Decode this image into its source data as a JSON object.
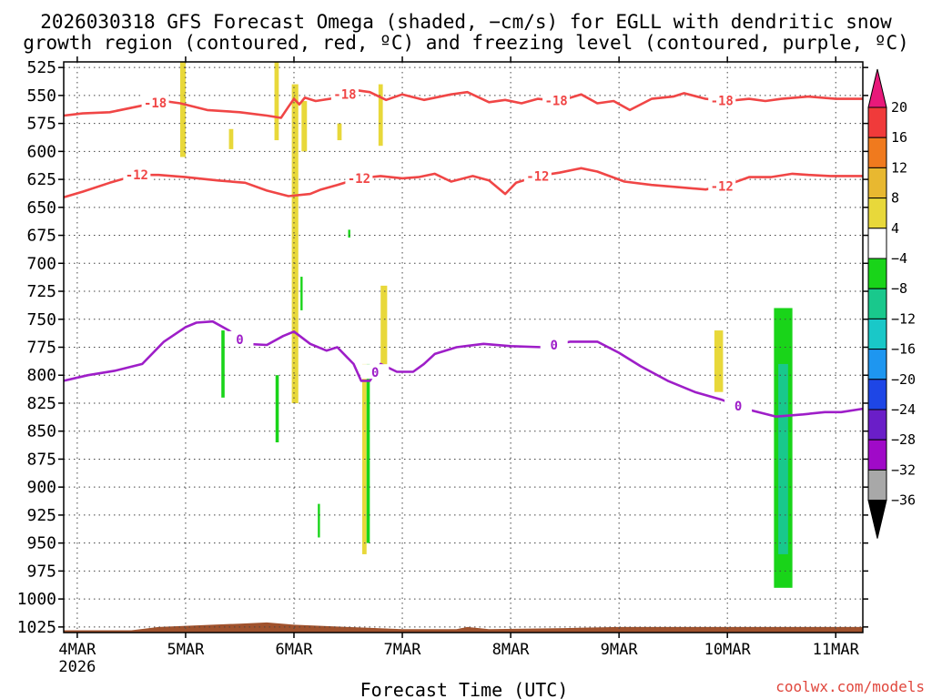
{
  "chart_data": {
    "type": "heatmap",
    "title_lines": [
      "2026030318 GFS Forecast Omega (shaded, −cm/s) for EGLL with dendritic snow",
      "growth region (contoured, red, ºC) and freezing level (contoured, purple, ºC)"
    ],
    "xlabel": "Forecast Time (UTC)",
    "credit": "coolwx.com/models",
    "x_ticks": [
      {
        "day": 4,
        "label": "4MAR",
        "sub": "2026"
      },
      {
        "day": 5,
        "label": "5MAR",
        "sub": ""
      },
      {
        "day": 6,
        "label": "6MAR",
        "sub": ""
      },
      {
        "day": 7,
        "label": "7MAR",
        "sub": ""
      },
      {
        "day": 8,
        "label": "8MAR",
        "sub": ""
      },
      {
        "day": 9,
        "label": "9MAR",
        "sub": ""
      },
      {
        "day": 10,
        "label": "10MAR",
        "sub": ""
      },
      {
        "day": 11,
        "label": "11MAR",
        "sub": ""
      }
    ],
    "xlim_days": [
      3.875,
      11.25
    ],
    "y_ticks": [
      525,
      550,
      575,
      600,
      625,
      650,
      675,
      700,
      725,
      750,
      775,
      800,
      825,
      850,
      875,
      900,
      925,
      950,
      975,
      1000,
      1025
    ],
    "ylim_hpa": [
      520,
      1030
    ],
    "colorbar": {
      "tick_labels": [
        "20",
        "16",
        "12",
        "8",
        "4",
        "−4",
        "−8",
        "−12",
        "−16",
        "−20",
        "−24",
        "−28",
        "−32",
        "−36"
      ],
      "colors": [
        "#e8197a",
        "#f03a3a",
        "#f07a1e",
        "#e8b830",
        "#e8d83a",
        "#ffffff",
        "#19d419",
        "#19c88c",
        "#19c8c8",
        "#1e96f0",
        "#1e46e6",
        "#6a1ec8",
        "#a00ac8",
        "#a8a8a8",
        "#000000"
      ]
    },
    "series": [
      {
        "name": "-18 ºC isotherm",
        "color": "#f04646",
        "contour_labels": [
          {
            "day": 4.72,
            "label": "-18"
          },
          {
            "day": 6.47,
            "label": "-18"
          },
          {
            "day": 8.42,
            "label": "-18"
          },
          {
            "day": 9.95,
            "label": "-18"
          }
        ],
        "points": [
          [
            3.875,
            568
          ],
          [
            4.05,
            566
          ],
          [
            4.3,
            565
          ],
          [
            4.55,
            560
          ],
          [
            4.8,
            555
          ],
          [
            4.95,
            557
          ],
          [
            5.2,
            563
          ],
          [
            5.5,
            565
          ],
          [
            5.75,
            568
          ],
          [
            5.88,
            570
          ],
          [
            5.95,
            560
          ],
          [
            6.0,
            553
          ],
          [
            6.05,
            558
          ],
          [
            6.1,
            552
          ],
          [
            6.2,
            555
          ],
          [
            6.4,
            552
          ],
          [
            6.55,
            545
          ],
          [
            6.7,
            547
          ],
          [
            6.85,
            554
          ],
          [
            7.0,
            549
          ],
          [
            7.2,
            554
          ],
          [
            7.45,
            549
          ],
          [
            7.6,
            547
          ],
          [
            7.8,
            556
          ],
          [
            7.95,
            554
          ],
          [
            8.1,
            557
          ],
          [
            8.25,
            553
          ],
          [
            8.45,
            555
          ],
          [
            8.65,
            549
          ],
          [
            8.8,
            557
          ],
          [
            8.95,
            555
          ],
          [
            9.1,
            563
          ],
          [
            9.3,
            553
          ],
          [
            9.5,
            551
          ],
          [
            9.6,
            548
          ],
          [
            9.8,
            553
          ],
          [
            10.0,
            555
          ],
          [
            10.2,
            553
          ],
          [
            10.35,
            555
          ],
          [
            10.5,
            553
          ],
          [
            10.75,
            551
          ],
          [
            11.0,
            553
          ],
          [
            11.25,
            553
          ]
        ]
      },
      {
        "name": "-12 ºC isotherm",
        "color": "#f04646",
        "contour_labels": [
          {
            "day": 4.55,
            "label": "-12"
          },
          {
            "day": 6.6,
            "label": "-12"
          },
          {
            "day": 8.25,
            "label": "-12"
          },
          {
            "day": 9.95,
            "label": "-12"
          }
        ],
        "points": [
          [
            3.875,
            641
          ],
          [
            4.05,
            636
          ],
          [
            4.3,
            628
          ],
          [
            4.55,
            621
          ],
          [
            4.75,
            621
          ],
          [
            5.0,
            623
          ],
          [
            5.3,
            626
          ],
          [
            5.55,
            628
          ],
          [
            5.75,
            635
          ],
          [
            5.95,
            640
          ],
          [
            6.15,
            638
          ],
          [
            6.25,
            634
          ],
          [
            6.4,
            630
          ],
          [
            6.6,
            624
          ],
          [
            6.8,
            622
          ],
          [
            7.0,
            624
          ],
          [
            7.15,
            623
          ],
          [
            7.3,
            620
          ],
          [
            7.45,
            627
          ],
          [
            7.65,
            622
          ],
          [
            7.8,
            626
          ],
          [
            7.95,
            638
          ],
          [
            8.05,
            628
          ],
          [
            8.25,
            622
          ],
          [
            8.45,
            619
          ],
          [
            8.65,
            615
          ],
          [
            8.8,
            618
          ],
          [
            9.05,
            627
          ],
          [
            9.3,
            630
          ],
          [
            9.55,
            632
          ],
          [
            9.8,
            634
          ],
          [
            10.0,
            630
          ],
          [
            10.2,
            623
          ],
          [
            10.4,
            623
          ],
          [
            10.6,
            620
          ],
          [
            10.75,
            621
          ],
          [
            10.95,
            622
          ],
          [
            11.25,
            622
          ]
        ]
      },
      {
        "name": "0 ºC freezing level",
        "color": "#9e1ec8",
        "contour_labels": [
          {
            "day": 5.5,
            "label": "0"
          },
          {
            "day": 6.75,
            "label": "0"
          },
          {
            "day": 8.4,
            "label": "0"
          },
          {
            "day": 10.1,
            "label": "0"
          }
        ],
        "points": [
          [
            3.875,
            805
          ],
          [
            4.1,
            800
          ],
          [
            4.35,
            796
          ],
          [
            4.6,
            790
          ],
          [
            4.8,
            770
          ],
          [
            5.0,
            757
          ],
          [
            5.1,
            753
          ],
          [
            5.25,
            752
          ],
          [
            5.4,
            760
          ],
          [
            5.55,
            772
          ],
          [
            5.75,
            773
          ],
          [
            5.9,
            765
          ],
          [
            6.0,
            761
          ],
          [
            6.15,
            772
          ],
          [
            6.3,
            778
          ],
          [
            6.4,
            775
          ],
          [
            6.55,
            790
          ],
          [
            6.62,
            805
          ],
          [
            6.7,
            805
          ],
          [
            6.8,
            790
          ],
          [
            6.95,
            797
          ],
          [
            7.1,
            797
          ],
          [
            7.2,
            790
          ],
          [
            7.3,
            781
          ],
          [
            7.5,
            775
          ],
          [
            7.75,
            772
          ],
          [
            8.0,
            774
          ],
          [
            8.3,
            775
          ],
          [
            8.55,
            770
          ],
          [
            8.8,
            770
          ],
          [
            9.0,
            780
          ],
          [
            9.2,
            792
          ],
          [
            9.45,
            805
          ],
          [
            9.7,
            815
          ],
          [
            9.95,
            822
          ],
          [
            10.2,
            831
          ],
          [
            10.45,
            837
          ],
          [
            10.7,
            835
          ],
          [
            10.9,
            833
          ],
          [
            11.05,
            833
          ],
          [
            11.25,
            830
          ]
        ]
      }
    ],
    "shaded_patches": [
      {
        "value": "4 to 8",
        "color": "#e8d83a",
        "day": [
          4.95,
          5.0
        ],
        "hpa": [
          520,
          605
        ]
      },
      {
        "value": "4 to 8",
        "color": "#e8d83a",
        "day": [
          5.4,
          5.44
        ],
        "hpa": [
          580,
          598
        ]
      },
      {
        "value": "4 to 8",
        "color": "#e8d83a",
        "day": [
          5.82,
          5.86
        ],
        "hpa": [
          520,
          590
        ]
      },
      {
        "value": "4 to 8",
        "color": "#e8d83a",
        "day": [
          5.98,
          6.04
        ],
        "hpa": [
          540,
          825
        ]
      },
      {
        "value": "4 to 8",
        "color": "#e8d83a",
        "day": [
          6.07,
          6.12
        ],
        "hpa": [
          555,
          600
        ]
      },
      {
        "value": "4 to 8",
        "color": "#e8d83a",
        "day": [
          6.4,
          6.44
        ],
        "hpa": [
          575,
          590
        ]
      },
      {
        "value": "4 to 8",
        "color": "#e8d83a",
        "day": [
          6.78,
          6.82
        ],
        "hpa": [
          540,
          595
        ]
      },
      {
        "value": "4 to 8",
        "color": "#e8d83a",
        "day": [
          6.8,
          6.86
        ],
        "hpa": [
          720,
          800
        ]
      },
      {
        "value": "4 to 8",
        "color": "#e8d83a",
        "day": [
          6.63,
          6.67
        ],
        "hpa": [
          790,
          960
        ]
      },
      {
        "value": "4 to 8",
        "color": "#e8d83a",
        "day": [
          9.88,
          9.96
        ],
        "hpa": [
          760,
          815
        ]
      },
      {
        "value": "−4 to −8",
        "color": "#19d419",
        "day": [
          5.33,
          5.36
        ],
        "hpa": [
          760,
          820
        ]
      },
      {
        "value": "−4 to −8",
        "color": "#19d419",
        "day": [
          5.83,
          5.86
        ],
        "hpa": [
          800,
          860
        ]
      },
      {
        "value": "−4 to −8",
        "color": "#19d419",
        "day": [
          6.06,
          6.08
        ],
        "hpa": [
          712,
          742
        ]
      },
      {
        "value": "−4 to −8",
        "color": "#19d419",
        "day": [
          6.67,
          6.7
        ],
        "hpa": [
          790,
          950
        ]
      },
      {
        "value": "−4 to −8",
        "color": "#19d419",
        "day": [
          6.22,
          6.24
        ],
        "hpa": [
          915,
          945
        ]
      },
      {
        "value": "−4 to −8",
        "color": "#19d419",
        "day": [
          6.5,
          6.52
        ],
        "hpa": [
          670,
          677
        ]
      },
      {
        "value": "−4 to −8",
        "color": "#19d419",
        "day": [
          10.43,
          10.6
        ],
        "hpa": [
          740,
          990
        ]
      },
      {
        "value": "−8 to −12",
        "color": "#19c88c",
        "day": [
          10.47,
          10.56
        ],
        "hpa": [
          790,
          960
        ]
      }
    ],
    "terrain": {
      "color": "#a0522d",
      "surface_hpa": [
        [
          3.875,
          1028
        ],
        [
          4.5,
          1028
        ],
        [
          4.75,
          1025
        ],
        [
          5.0,
          1024
        ],
        [
          5.5,
          1022
        ],
        [
          5.75,
          1021
        ],
        [
          6.0,
          1023
        ],
        [
          6.5,
          1025
        ],
        [
          7.0,
          1027
        ],
        [
          7.5,
          1027
        ],
        [
          7.6,
          1025
        ],
        [
          7.8,
          1027
        ],
        [
          8.5,
          1026
        ],
        [
          9.0,
          1025
        ],
        [
          9.5,
          1025
        ],
        [
          10.0,
          1025
        ],
        [
          10.5,
          1025
        ],
        [
          11.25,
          1025
        ]
      ]
    }
  }
}
